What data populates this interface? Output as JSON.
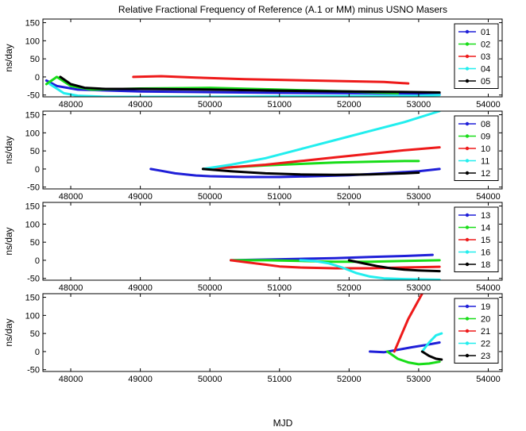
{
  "figure": {
    "title": "Relative Fractional Frequency of Reference (A.1 or MM) minus USNO Masers",
    "xlabel": "MJD"
  },
  "colors": {
    "blue": "#1f1fd8",
    "green": "#18dd18",
    "red": "#ee1a1a",
    "cyan": "#22eeee",
    "black": "#000000"
  },
  "chart_data": [
    {
      "type": "line",
      "ylabel": "ns/day",
      "xlim": [
        47600,
        54200
      ],
      "ylim": [
        -55,
        160
      ],
      "xticks": [
        48000,
        49000,
        50000,
        51000,
        52000,
        53000,
        54000
      ],
      "yticks": [
        -50,
        0,
        50,
        100,
        150
      ],
      "grid": false,
      "legend_position": "right",
      "series": [
        {
          "name": "01",
          "color": "#1f1fd8",
          "x": [
            47650,
            47800,
            48100,
            49000,
            50000,
            51000,
            52000,
            53000,
            53300
          ],
          "y": [
            -10,
            -25,
            -35,
            -40,
            -42,
            -44,
            -45,
            -46,
            -48
          ]
        },
        {
          "name": "02",
          "color": "#18dd18",
          "x": [
            47650,
            47800,
            48000,
            48300,
            49000,
            50000,
            51000,
            52000,
            52700
          ],
          "y": [
            -20,
            0,
            -25,
            -35,
            -32,
            -30,
            -35,
            -40,
            -45
          ]
        },
        {
          "name": "03",
          "color": "#ee1a1a",
          "x": [
            48900,
            49300,
            49800,
            50500,
            51000,
            51500,
            52000,
            52500,
            52850
          ],
          "y": [
            0,
            2,
            -2,
            -6,
            -8,
            -10,
            -12,
            -14,
            -18
          ]
        },
        {
          "name": "04",
          "color": "#22eeee",
          "x": [
            47700,
            47900,
            48100,
            48500,
            49000,
            50000,
            51000,
            52000,
            53000,
            53300
          ],
          "y": [
            -20,
            -45,
            -52,
            -55,
            -55,
            -55,
            -54,
            -53,
            -52,
            -50
          ]
        },
        {
          "name": "05",
          "color": "#000000",
          "x": [
            47850,
            48000,
            48200,
            48500,
            49000,
            50000,
            51000,
            52000,
            53000,
            53300
          ],
          "y": [
            0,
            -20,
            -30,
            -33,
            -33,
            -35,
            -38,
            -40,
            -42,
            -43
          ]
        }
      ]
    },
    {
      "type": "line",
      "ylabel": "ns/day",
      "xlim": [
        47600,
        54200
      ],
      "ylim": [
        -55,
        160
      ],
      "xticks": [
        48000,
        49000,
        50000,
        51000,
        52000,
        53000,
        54000
      ],
      "yticks": [
        -50,
        0,
        50,
        100,
        150
      ],
      "grid": false,
      "legend_position": "right",
      "series": [
        {
          "name": "08",
          "color": "#1f1fd8",
          "x": [
            49150,
            49300,
            49500,
            49800,
            50000,
            50500,
            51000,
            51500,
            52000,
            52500,
            53000,
            53300
          ],
          "y": [
            0,
            -5,
            -12,
            -18,
            -20,
            -22,
            -22,
            -20,
            -17,
            -12,
            -6,
            0
          ]
        },
        {
          "name": "09",
          "color": "#18dd18",
          "x": [
            49900,
            50300,
            50800,
            51300,
            51800,
            52300,
            52800,
            53000
          ],
          "y": [
            0,
            5,
            10,
            14,
            18,
            20,
            22,
            22
          ]
        },
        {
          "name": "10",
          "color": "#ee1a1a",
          "x": [
            49900,
            50300,
            50800,
            51300,
            51800,
            52300,
            52800,
            53300
          ],
          "y": [
            0,
            5,
            12,
            22,
            32,
            42,
            52,
            60
          ]
        },
        {
          "name": "11",
          "color": "#22eeee",
          "x": [
            49900,
            50300,
            50800,
            51300,
            51800,
            52300,
            52800,
            53300
          ],
          "y": [
            0,
            12,
            30,
            55,
            80,
            105,
            130,
            160
          ]
        },
        {
          "name": "12",
          "color": "#000000",
          "x": [
            49900,
            50300,
            50800,
            51300,
            51800,
            52300,
            52800,
            53000
          ],
          "y": [
            0,
            -6,
            -12,
            -15,
            -16,
            -15,
            -12,
            -10
          ]
        }
      ]
    },
    {
      "type": "line",
      "ylabel": "ns/day",
      "xlim": [
        47600,
        54200
      ],
      "ylim": [
        -55,
        160
      ],
      "xticks": [
        48000,
        49000,
        50000,
        51000,
        52000,
        53000,
        54000
      ],
      "yticks": [
        -50,
        0,
        50,
        100,
        150
      ],
      "grid": false,
      "legend_position": "right",
      "series": [
        {
          "name": "13",
          "color": "#1f1fd8",
          "x": [
            50300,
            50800,
            51300,
            51800,
            52300,
            52800,
            53200
          ],
          "y": [
            0,
            2,
            4,
            6,
            9,
            12,
            15
          ]
        },
        {
          "name": "14",
          "color": "#18dd18",
          "x": [
            50300,
            50800,
            51300,
            51800,
            52300,
            52800,
            53300
          ],
          "y": [
            0,
            0,
            -2,
            -4,
            -4,
            -2,
            0
          ]
        },
        {
          "name": "15",
          "color": "#ee1a1a",
          "x": [
            50300,
            50500,
            50800,
            51000,
            51300,
            51800,
            52300,
            52800,
            53300
          ],
          "y": [
            0,
            -5,
            -12,
            -17,
            -20,
            -22,
            -22,
            -20,
            -18
          ]
        },
        {
          "name": "16",
          "color": "#22eeee",
          "x": [
            51300,
            51500,
            51700,
            51900,
            52100,
            52300,
            52500,
            52800,
            53300
          ],
          "y": [
            0,
            -2,
            -8,
            -20,
            -35,
            -45,
            -50,
            -52,
            -54
          ]
        },
        {
          "name": "18",
          "color": "#000000",
          "x": [
            52000,
            52200,
            52400,
            52600,
            52800,
            53000,
            53300
          ],
          "y": [
            0,
            -8,
            -16,
            -22,
            -26,
            -28,
            -30
          ]
        }
      ]
    },
    {
      "type": "line",
      "ylabel": "ns/day",
      "xlim": [
        47600,
        54200
      ],
      "ylim": [
        -55,
        160
      ],
      "xticks": [
        48000,
        49000,
        50000,
        51000,
        52000,
        53000,
        54000
      ],
      "yticks": [
        -50,
        0,
        50,
        100,
        150
      ],
      "grid": false,
      "legend_position": "right",
      "series": [
        {
          "name": "19",
          "color": "#1f1fd8",
          "x": [
            52300,
            52500,
            52700,
            52900,
            53100,
            53300
          ],
          "y": [
            0,
            -2,
            5,
            12,
            18,
            25
          ]
        },
        {
          "name": "20",
          "color": "#18dd18",
          "x": [
            52550,
            52700,
            52850,
            53000,
            53150,
            53300
          ],
          "y": [
            0,
            -20,
            -30,
            -35,
            -33,
            -28
          ]
        },
        {
          "name": "21",
          "color": "#ee1a1a",
          "x": [
            52650,
            52750,
            52850,
            52950,
            53050
          ],
          "y": [
            0,
            45,
            90,
            125,
            160
          ]
        },
        {
          "name": "22",
          "color": "#22eeee",
          "x": [
            53050,
            53150,
            53250,
            53330
          ],
          "y": [
            0,
            25,
            45,
            50
          ]
        },
        {
          "name": "23",
          "color": "#000000",
          "x": [
            53050,
            53150,
            53250,
            53330
          ],
          "y": [
            0,
            -12,
            -20,
            -22
          ]
        }
      ]
    }
  ]
}
